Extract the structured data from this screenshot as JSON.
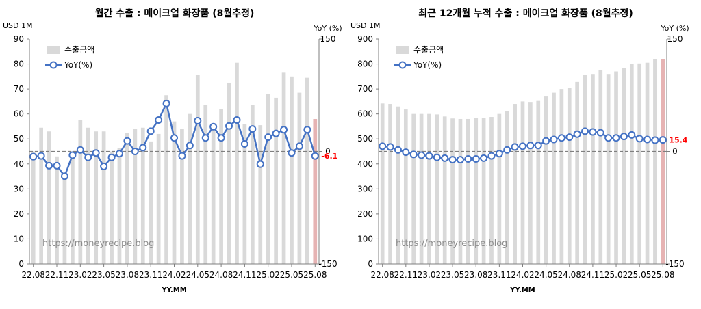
{
  "chart_data": [
    {
      "type": "bar+line",
      "title": "월간 수출 : 메이크업 화장품 (8월추정)",
      "left_unit": "USD 1M",
      "right_unit": "YoY (%)",
      "xlabel": "YY.MM",
      "y_left_lim": [
        0,
        90
      ],
      "y_left_ticks": [
        "0",
        "10",
        "20",
        "30",
        "40",
        "50",
        "60",
        "70",
        "80",
        "90"
      ],
      "y_right_lim": [
        -150,
        150
      ],
      "y_right_ticks": [
        {
          "v": 150,
          "t": "150"
        },
        {
          "v": 0,
          "t": "0"
        },
        {
          "v": -150,
          "t": "-150"
        }
      ],
      "categories": [
        "22.08",
        "22.09",
        "22.10",
        "22.11",
        "22.12",
        "23.01",
        "23.02",
        "23.03",
        "23.04",
        "23.05",
        "23.06",
        "23.07",
        "23.08",
        "23.09",
        "23.10",
        "23.11",
        "23.12",
        "24.01",
        "24.02",
        "24.03",
        "24.04",
        "24.05",
        "24.06",
        "24.07",
        "24.08",
        "24.09",
        "24.10",
        "24.11",
        "24.12",
        "25.01",
        "25.02",
        "25.03",
        "25.04",
        "25.05",
        "25.06",
        "25.07",
        "25.08"
      ],
      "x_tick_labels": [
        "22.08",
        "22.11",
        "23.02",
        "23.05",
        "23.08",
        "23.11",
        "24.02",
        "24.05",
        "24.08",
        "24.11",
        "25.02",
        "25.05",
        "25.08"
      ],
      "grid": false,
      "legend_position": "top-left",
      "series": [
        {
          "name": "수출금액",
          "kind": "bar",
          "color": "#d9d9d9",
          "highlight_last": "#e6b3b3",
          "values": [
            45,
            54.5,
            53,
            43,
            36,
            45,
            57.5,
            54.5,
            53,
            53,
            45,
            46.5,
            52.5,
            54,
            54.5,
            49,
            52,
            67.5,
            57,
            54,
            60,
            75.5,
            63.5,
            55,
            62,
            72.5,
            80.5,
            56,
            63.5,
            55.5,
            68,
            66.5,
            76.5,
            75,
            68.5,
            74.5,
            58
          ]
        },
        {
          "name": "YoY(%)",
          "kind": "line",
          "axis": "right",
          "color": "#4472c4",
          "values": [
            -7,
            -6,
            -19,
            -19,
            -33,
            -5,
            2,
            -8,
            -2,
            -20,
            -8,
            -3,
            14,
            0,
            5,
            27,
            42,
            64,
            18,
            -6,
            8,
            41,
            18,
            33,
            18,
            34,
            42,
            10,
            30,
            -17,
            19,
            24,
            29,
            -2,
            7,
            29,
            -6.1
          ]
        }
      ],
      "last_label": "-6.1",
      "watermark": "https://moneyrecipe.blog"
    },
    {
      "type": "bar+line",
      "title": "최근 12개월 누적 수출 : 메이크업 화장품 (8월추정)",
      "left_unit": "USD 1M",
      "right_unit": "YoY (%)",
      "xlabel": "YY.MM",
      "y_left_lim": [
        0,
        900
      ],
      "y_left_ticks": [
        "0",
        "100",
        "200",
        "300",
        "400",
        "500",
        "600",
        "700",
        "800",
        "900"
      ],
      "y_right_lim": [
        -150,
        150
      ],
      "y_right_ticks": [
        {
          "v": 150,
          "t": "150"
        },
        {
          "v": 0,
          "t": "0"
        },
        {
          "v": -150,
          "t": "-150"
        }
      ],
      "categories": [
        "22.08",
        "22.09",
        "22.10",
        "22.11",
        "22.12",
        "23.01",
        "23.02",
        "23.03",
        "23.04",
        "23.05",
        "23.06",
        "23.07",
        "23.08",
        "23.09",
        "23.10",
        "23.11",
        "23.12",
        "24.01",
        "24.02",
        "24.03",
        "24.04",
        "24.05",
        "24.06",
        "24.07",
        "24.08",
        "24.09",
        "24.10",
        "24.11",
        "24.12",
        "25.01",
        "25.02",
        "25.03",
        "25.04",
        "25.05",
        "25.06",
        "25.07",
        "25.08"
      ],
      "x_tick_labels": [
        "22.08",
        "22.11",
        "23.02",
        "23.05",
        "23.08",
        "23.11",
        "24.02",
        "24.05",
        "24.08",
        "24.11",
        "25.02",
        "25.05",
        "25.08"
      ],
      "grid": false,
      "legend_position": "top-left",
      "series": [
        {
          "name": "수출금액",
          "kind": "bar",
          "color": "#d9d9d9",
          "highlight_last": "#e6b3b3",
          "values": [
            642,
            640,
            630,
            618,
            600,
            600,
            600,
            598,
            590,
            582,
            580,
            580,
            585,
            585,
            588,
            600,
            612,
            640,
            650,
            648,
            652,
            670,
            685,
            700,
            705,
            728,
            755,
            760,
            775,
            760,
            770,
            785,
            800,
            802,
            805,
            820,
            820
          ]
        },
        {
          "name": "YoY(%)",
          "kind": "line",
          "axis": "right",
          "color": "#4472c4",
          "values": [
            7,
            6,
            2,
            -1,
            -4,
            -5,
            -6,
            -8,
            -9,
            -11,
            -11,
            -10,
            -10,
            -9,
            -6,
            -3,
            2,
            6,
            7,
            8,
            8,
            14,
            16,
            18,
            19,
            23,
            27,
            26,
            25,
            18,
            18,
            20,
            22,
            17,
            16,
            15,
            15.4
          ]
        }
      ],
      "last_label": "15.4",
      "watermark": "https://moneyrecipe.blog"
    }
  ]
}
